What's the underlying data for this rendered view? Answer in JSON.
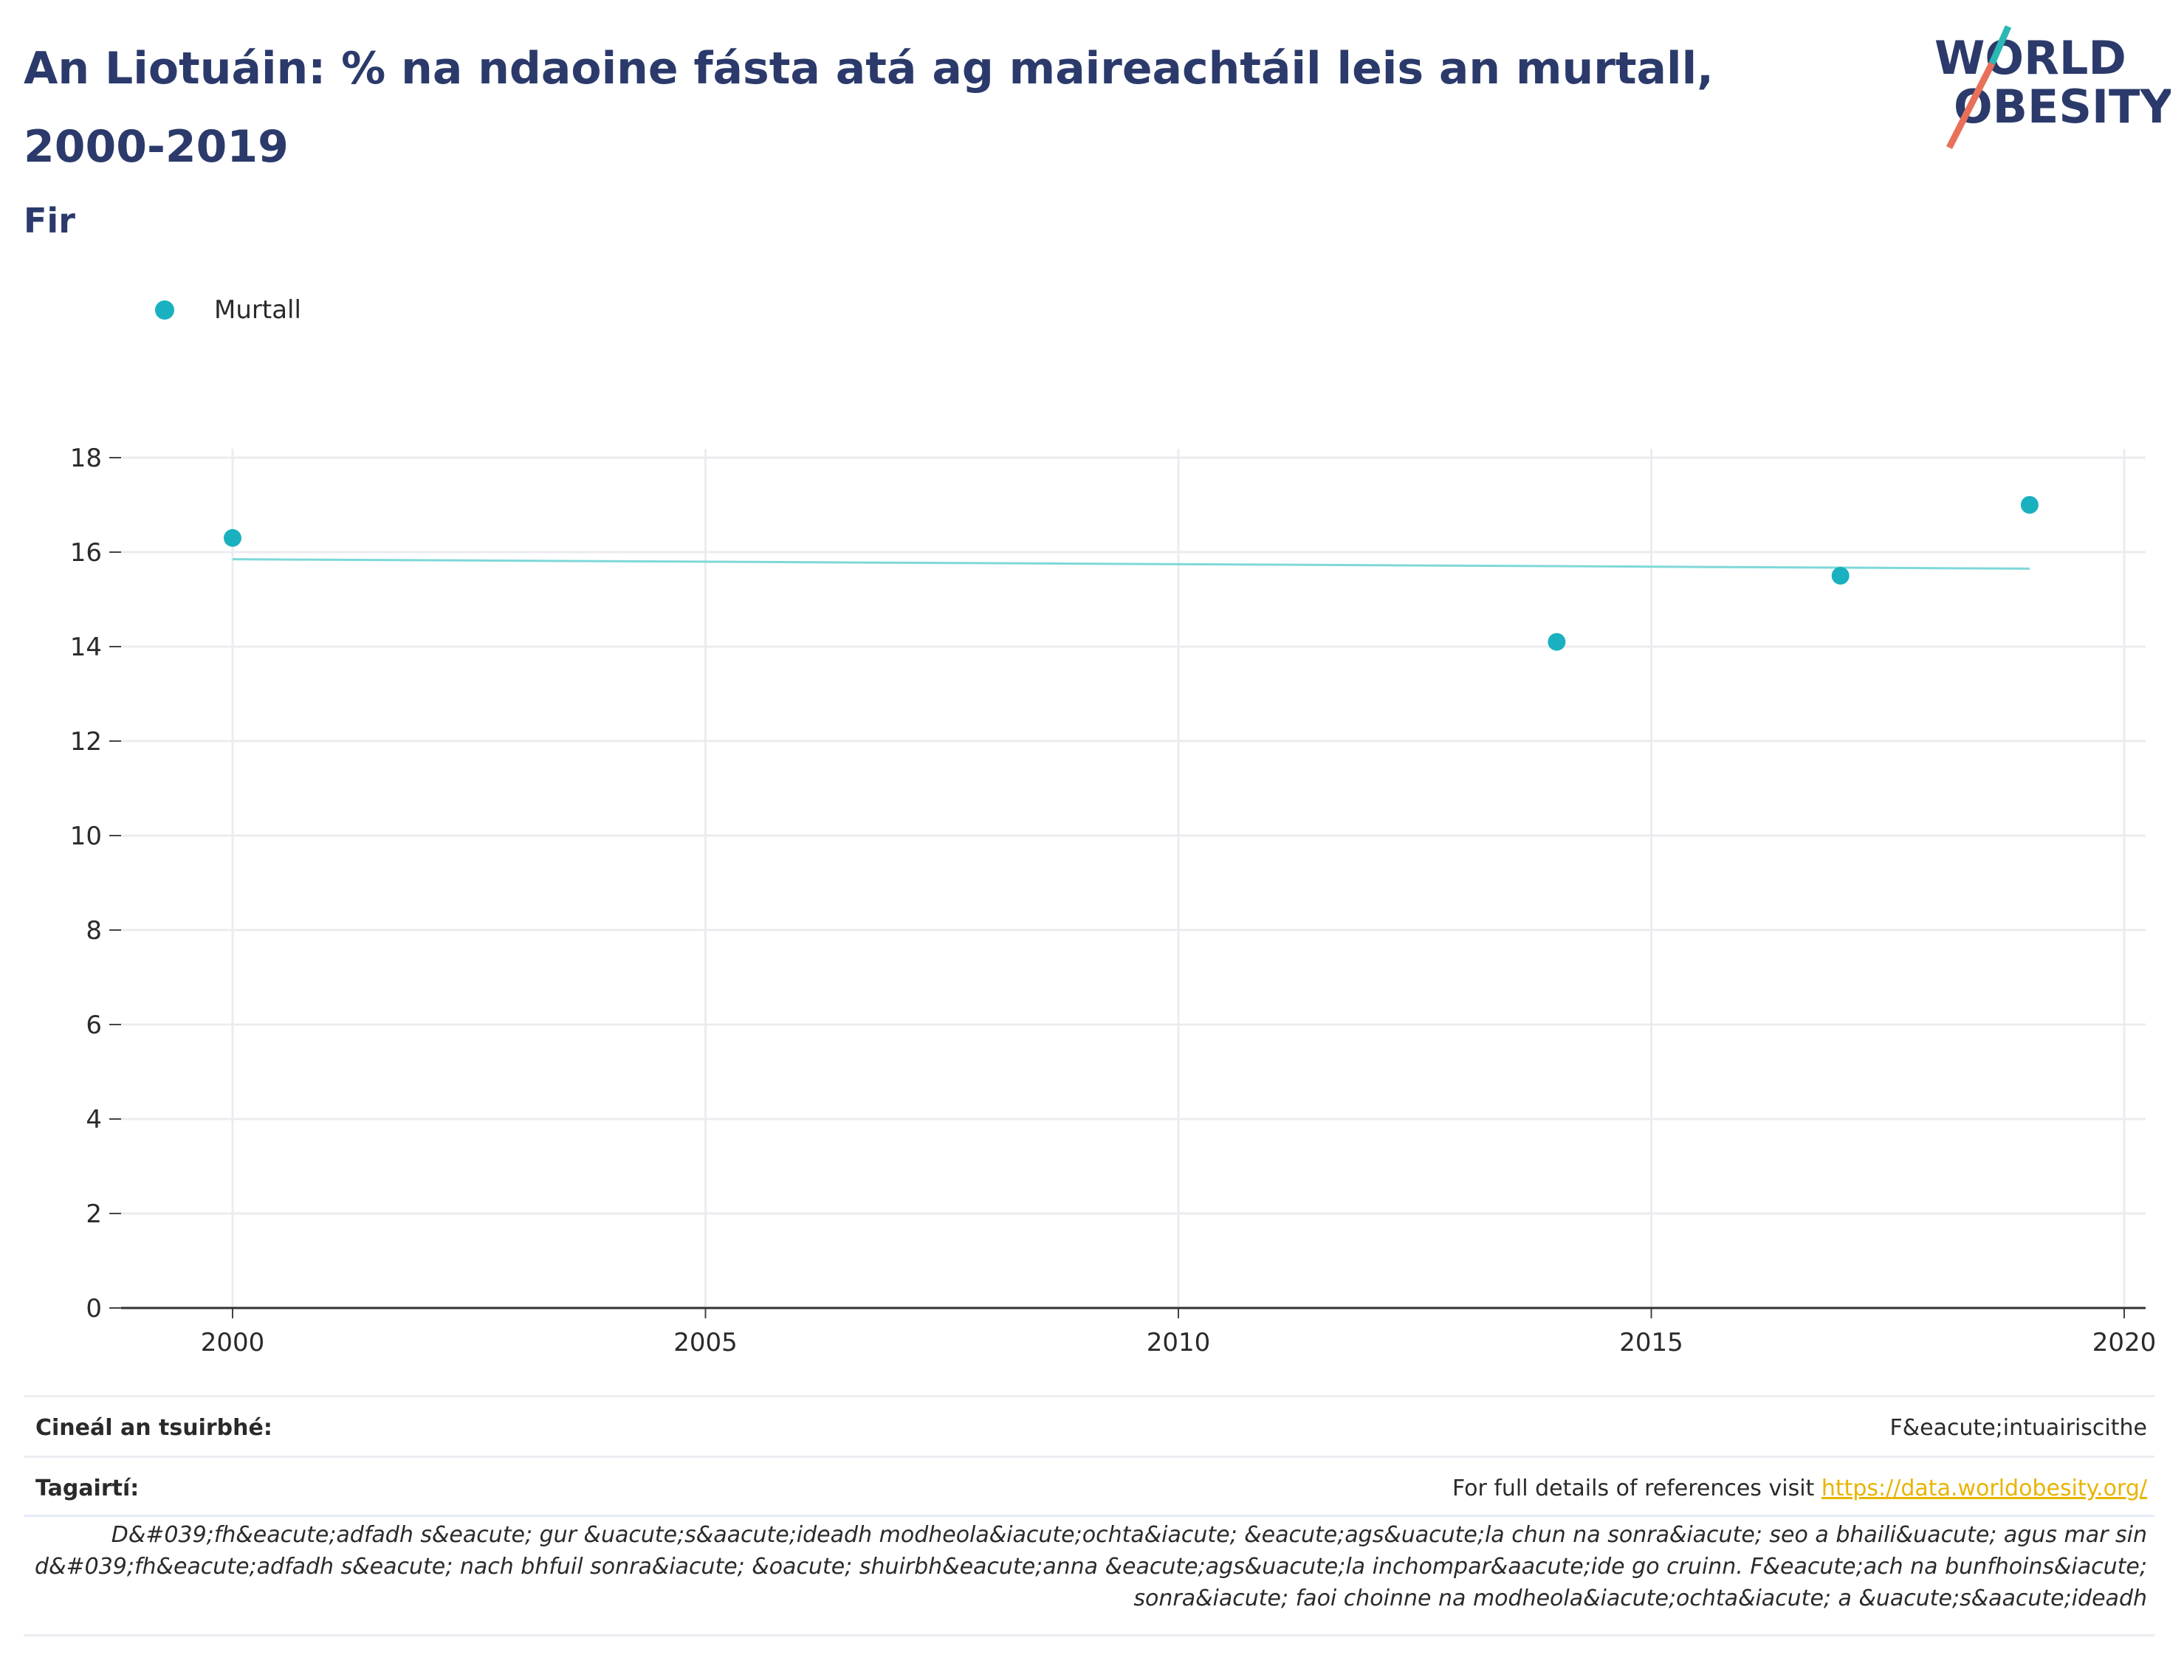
{
  "header": {
    "title": "An Liotuáin: % na ndaoine fásta atá ag maireachtáil leis an murtall, 2000-2019",
    "subtitle": "Fir"
  },
  "logo": {
    "text_line1": "WORLD",
    "text_line2": "OBESITY",
    "colors": [
      "#2b3a6b",
      "#2bb7b3",
      "#e8705a"
    ]
  },
  "legend": {
    "label": "Murtall",
    "color": "#19b1bf"
  },
  "chart_data": {
    "type": "scatter",
    "title": "",
    "xlabel": "",
    "ylabel": "",
    "xlim": [
      1999,
      2020.2
    ],
    "ylim": [
      0,
      18
    ],
    "x_ticks": [
      2000,
      2005,
      2010,
      2015,
      2020
    ],
    "y_ticks": [
      0,
      2,
      4,
      6,
      8,
      10,
      12,
      14,
      16,
      18
    ],
    "grid": true,
    "series": [
      {
        "name": "Murtall",
        "color": "#19b1bf",
        "points": [
          {
            "x": 2000,
            "y": 16.3
          },
          {
            "x": 2014,
            "y": 14.1
          },
          {
            "x": 2017,
            "y": 15.5
          },
          {
            "x": 2019,
            "y": 17.0
          }
        ]
      }
    ],
    "trendline": {
      "color": "#7fd8d8",
      "points": [
        {
          "x": 2000,
          "y": 15.85
        },
        {
          "x": 2019,
          "y": 15.65
        }
      ]
    }
  },
  "info": {
    "survey_label": "Cineál an tsuirbhé:",
    "survey_value": "F&eacute;intuairiscithe",
    "refs_label": "Tagairtí:",
    "refs_text": "For full details of references visit ",
    "refs_link": "https://data.worldobesity.org/",
    "note": "D&#039;fh&eacute;adfadh s&eacute; gur &uacute;s&aacute;ideadh modheola&iacute;ochta&iacute; &eacute;ags&uacute;la chun na sonra&iacute; seo a bhaili&uacute; agus mar sin d&#039;fh&eacute;adfadh s&eacute; nach bhfuil sonra&iacute; &oacute; shuirbh&eacute;anna &eacute;ags&uacute;la inchompar&aacute;ide go cruinn. F&eacute;ach na bunfhoins&iacute; sonra&iacute; faoi choinne na modheola&iacute;ochta&iacute; a &uacute;s&aacute;ideadh"
  }
}
